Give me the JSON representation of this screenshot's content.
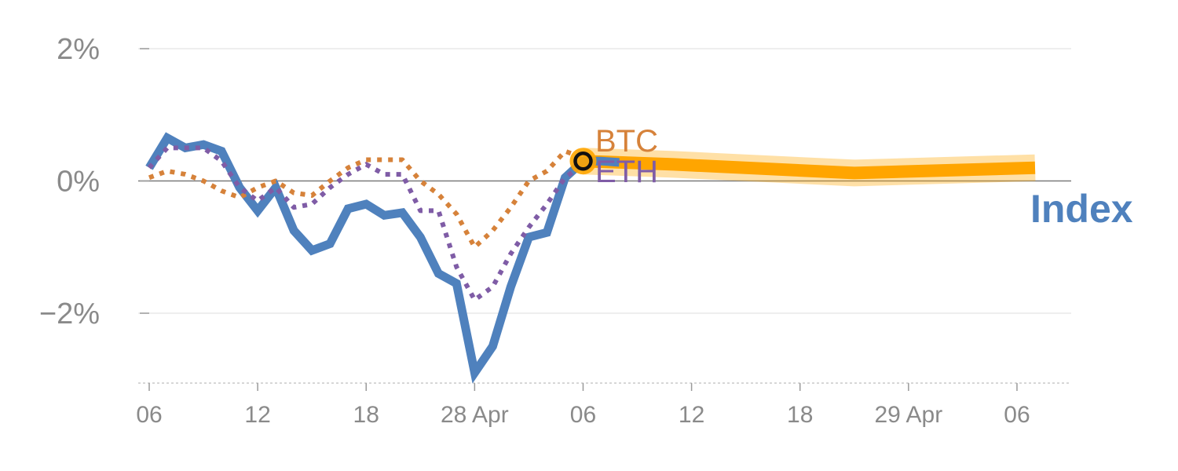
{
  "chart_data": {
    "type": "line",
    "x_ticks": [
      "06",
      "12",
      "18",
      "28 Apr",
      "06",
      "12",
      "18",
      "29 Apr",
      "06"
    ],
    "y_ticks": [
      {
        "value": 2,
        "label": "2%"
      },
      {
        "value": 0,
        "label": "0%"
      },
      {
        "value": -2,
        "label": "−2%"
      }
    ],
    "ylim": [
      -3.0,
      2.0
    ],
    "xlim": [
      0,
      51
    ],
    "grid": true,
    "series": [
      {
        "name": "Index",
        "color": "#4f81bd",
        "style": "solid",
        "x": [
          1,
          2,
          3,
          4,
          5,
          6,
          7,
          8,
          9,
          10,
          11,
          12,
          13,
          14,
          15,
          16,
          17,
          18,
          19,
          20,
          21,
          22,
          23,
          24,
          25,
          26,
          27
        ],
        "y": [
          0.2,
          0.65,
          0.5,
          0.55,
          0.45,
          -0.1,
          -0.45,
          -0.1,
          -0.75,
          -1.05,
          -0.95,
          -0.42,
          -0.35,
          -0.52,
          -0.48,
          -0.85,
          -1.4,
          -1.55,
          -2.9,
          -2.5,
          -1.6,
          -0.85,
          -0.78,
          0.05,
          0.3,
          0.3,
          0.28
        ]
      },
      {
        "name": "BTC",
        "color": "#d6823a",
        "style": "dotted",
        "x": [
          1,
          2,
          3,
          4,
          5,
          6,
          7,
          8,
          9,
          10,
          11,
          12,
          13,
          14,
          15,
          16,
          17,
          18,
          19,
          20,
          21,
          22,
          23,
          24,
          25
        ],
        "y": [
          0.05,
          0.15,
          0.1,
          0.0,
          -0.15,
          -0.25,
          -0.1,
          0.0,
          -0.18,
          -0.22,
          0.0,
          0.2,
          0.32,
          0.32,
          0.32,
          0.0,
          -0.2,
          -0.5,
          -1.0,
          -0.75,
          -0.4,
          0.0,
          0.15,
          0.45,
          0.35
        ]
      },
      {
        "name": "ETH",
        "color": "#7f5ca6",
        "style": "dotted",
        "x": [
          1,
          2,
          3,
          4,
          5,
          6,
          7,
          8,
          9,
          10,
          11,
          12,
          13,
          14,
          15,
          16,
          17,
          18,
          19,
          20,
          21,
          22,
          23,
          24,
          25
        ],
        "y": [
          0.2,
          0.5,
          0.5,
          0.5,
          0.3,
          -0.1,
          -0.3,
          -0.1,
          -0.4,
          -0.35,
          -0.1,
          0.1,
          0.25,
          0.1,
          0.1,
          -0.45,
          -0.45,
          -1.3,
          -1.8,
          -1.6,
          -1.1,
          -0.7,
          -0.35,
          0.05,
          0.25
        ]
      },
      {
        "name": "",
        "color": "#ffa500",
        "style": "forecast",
        "x": [
          25,
          30,
          40,
          50
        ],
        "y": [
          0.3,
          0.25,
          0.12,
          0.2
        ]
      }
    ],
    "marker": {
      "x": 25,
      "y": 0.3
    },
    "labels": {
      "btc": "BTC",
      "eth": "ETH",
      "index": "Index"
    }
  },
  "colors": {
    "index": "#4f81bd",
    "btc": "#d6823a",
    "eth": "#7f5ca6",
    "forecast": "#ffa500",
    "tick_text": "#8a8a8a"
  }
}
